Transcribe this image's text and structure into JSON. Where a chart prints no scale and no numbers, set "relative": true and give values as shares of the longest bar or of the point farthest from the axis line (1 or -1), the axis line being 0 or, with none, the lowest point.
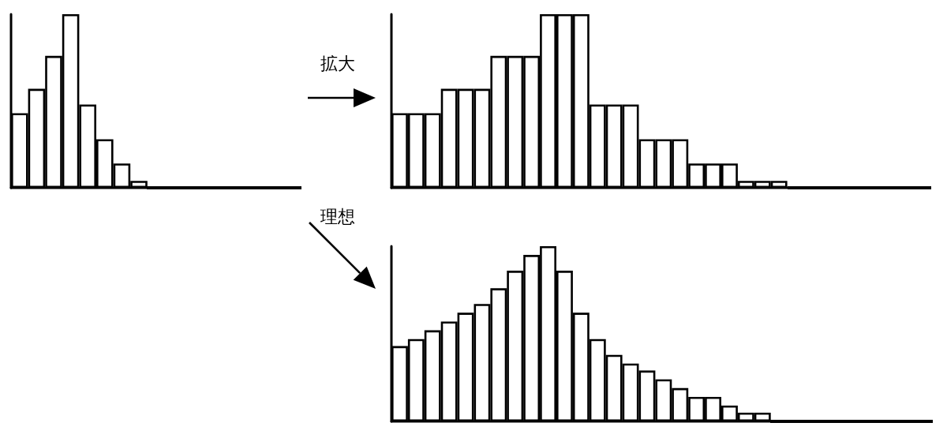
{
  "chart_data": [
    {
      "type": "bar",
      "relative": true,
      "color": "#ffffff",
      "categories": [
        null,
        null,
        null,
        null,
        null,
        null,
        null,
        null
      ],
      "values": [
        0.43,
        0.57,
        0.76,
        1,
        0.48,
        0.28,
        0.14,
        0.04
      ]
    },
    {
      "type": "bar",
      "relative": true,
      "color": "#ffffff",
      "annotations": [
        "拡大"
      ],
      "categories": [
        null,
        null,
        null,
        null,
        null,
        null,
        null,
        null,
        null,
        null,
        null,
        null,
        null,
        null,
        null,
        null,
        null,
        null,
        null,
        null,
        null,
        null,
        null,
        null
      ],
      "values": [
        0.43,
        0.43,
        0.43,
        0.57,
        0.57,
        0.57,
        0.76,
        0.76,
        0.76,
        1,
        1,
        1,
        0.48,
        0.48,
        0.48,
        0.28,
        0.28,
        0.28,
        0.14,
        0.14,
        0.14,
        0.04,
        0.04,
        0.04
      ]
    },
    {
      "type": "bar",
      "relative": true,
      "color": "#ffffff",
      "annotations": [
        "理想"
      ],
      "categories": [
        null,
        null,
        null,
        null,
        null,
        null,
        null,
        null,
        null,
        null,
        null,
        null,
        null,
        null,
        null,
        null,
        null,
        null,
        null,
        null,
        null,
        null,
        null
      ],
      "values": [
        0.43,
        0.47,
        0.52,
        0.57,
        0.62,
        0.67,
        0.76,
        0.86,
        0.95,
        1,
        0.86,
        0.62,
        0.47,
        0.38,
        0.33,
        0.29,
        0.24,
        0.19,
        0.14,
        0.14,
        0.09,
        0.05,
        0.05
      ]
    }
  ]
}
